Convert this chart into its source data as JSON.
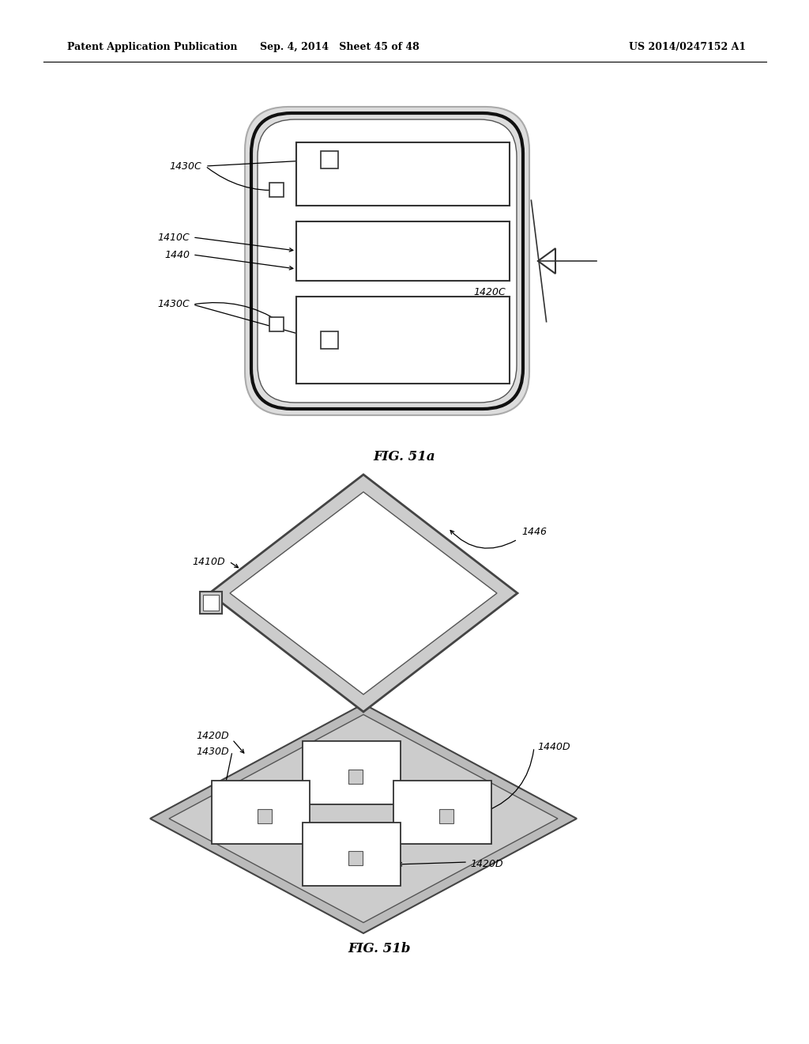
{
  "header_left": "Patent Application Publication",
  "header_mid": "Sep. 4, 2014   Sheet 45 of 48",
  "header_right": "US 2014/0247152 A1",
  "fig51a_caption": "FIG. 51a",
  "fig51b_caption": "FIG. 51b",
  "bg_color": "#ffffff",
  "line_color": "#000000"
}
